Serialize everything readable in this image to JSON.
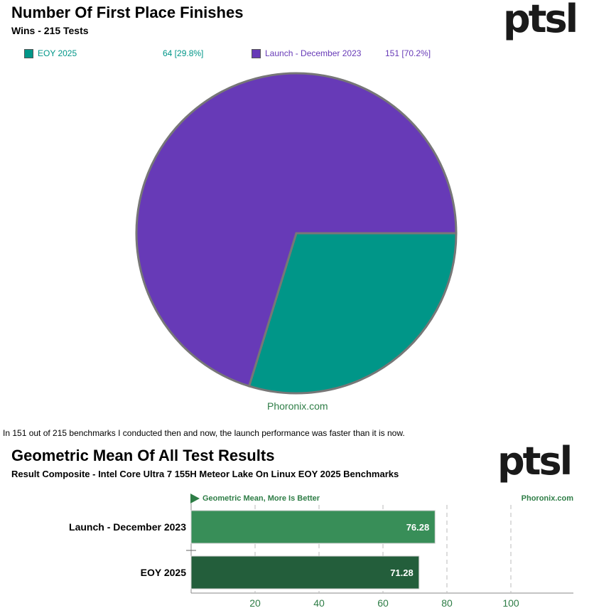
{
  "logo_text": "ptsl",
  "pie_chart": {
    "title": "Number Of First Place Finishes",
    "subtitle": "Wins - 215 Tests",
    "watermark": "Phoronix.com",
    "legend": [
      {
        "label": "EOY 2025",
        "value_text": "64 [29.8%]",
        "color": "#009688"
      },
      {
        "label": "Launch - December 2023",
        "value_text": "151 [70.2%]",
        "color": "#673ab7"
      }
    ]
  },
  "caption": "In 151 out of 215 benchmarks I conducted then and now, the launch performance was faster than it is now.",
  "bar_chart": {
    "title": "Geometric Mean Of All Test Results",
    "subtitle": "Result Composite - Intel Core Ultra 7 155H Meteor Lake On Linux EOY 2025 Benchmarks",
    "direction_label": "Geometric Mean, More Is Better",
    "watermark": "Phoronix.com"
  },
  "chart_data": [
    {
      "type": "pie",
      "title": "Number Of First Place Finishes",
      "subtitle": "Wins - 215 Tests",
      "total": 215,
      "slices": [
        {
          "name": "EOY 2025",
          "value": 64,
          "percent": 29.8,
          "color": "#009688"
        },
        {
          "name": "Launch - December 2023",
          "value": 151,
          "percent": 70.2,
          "color": "#673ab7"
        }
      ],
      "legend_position": "top"
    },
    {
      "type": "bar",
      "orientation": "horizontal",
      "title": "Geometric Mean Of All Test Results",
      "subtitle": "Result Composite - Intel Core Ultra 7 155H Meteor Lake On Linux EOY 2025 Benchmarks",
      "categories": [
        "Launch - December 2023",
        "EOY 2025"
      ],
      "values": [
        76.28,
        71.28
      ],
      "value_labels": [
        "76.28",
        "71.28"
      ],
      "colors": [
        "#388e58",
        "#235e3b"
      ],
      "xlim": [
        0,
        120
      ],
      "xticks": [
        20,
        40,
        60,
        80,
        100
      ],
      "grid": true
    }
  ]
}
